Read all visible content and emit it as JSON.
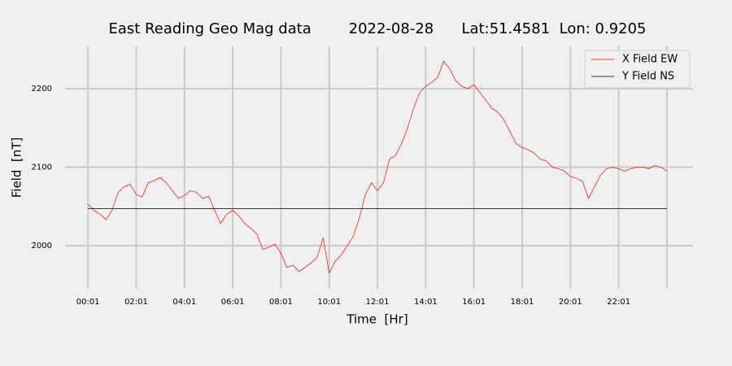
{
  "chart_data": {
    "type": "line",
    "title": "East Reading Geo Mag data        2022-08-28      Lat:51.4581  Lon: 0.9205",
    "x_label": "Time  [Hr]",
    "y_label": "Field  [nT]",
    "xlim": [
      -0.95,
      25.08
    ],
    "ylim": [
      1945,
      2254
    ],
    "xticks": [
      {
        "value": 0,
        "label": "00:01"
      },
      {
        "value": 2,
        "label": "02:01"
      },
      {
        "value": 4,
        "label": "04:01"
      },
      {
        "value": 6,
        "label": "06:01"
      },
      {
        "value": 8,
        "label": "08:01"
      },
      {
        "value": 10,
        "label": "10:01"
      },
      {
        "value": 12,
        "label": "12:01"
      },
      {
        "value": 14,
        "label": "14:01"
      },
      {
        "value": 16,
        "label": "16:01"
      },
      {
        "value": 18,
        "label": "18:01"
      },
      {
        "value": 20,
        "label": "20:01"
      },
      {
        "value": 22,
        "label": "22:01"
      },
      24
    ],
    "yticks": [
      2000,
      2100,
      2200
    ],
    "grid": true,
    "legend": "upper right",
    "series": [
      {
        "name": "X Field EW",
        "color": "#ff0000",
        "x": [
          0,
          0.25,
          0.5,
          0.75,
          1,
          1.25,
          1.5,
          1.75,
          2,
          2.25,
          2.5,
          2.75,
          3,
          3.25,
          3.5,
          3.75,
          4,
          4.25,
          4.5,
          4.75,
          5,
          5.25,
          5.5,
          5.75,
          6,
          6.25,
          6.5,
          6.75,
          7,
          7.25,
          7.5,
          7.75,
          8,
          8.25,
          8.5,
          8.75,
          9,
          9.25,
          9.5,
          9.75,
          10,
          10.25,
          10.5,
          10.75,
          11,
          11.25,
          11.5,
          11.75,
          12,
          12.25,
          12.5,
          12.75,
          13,
          13.25,
          13.5,
          13.75,
          14,
          14.25,
          14.5,
          14.75,
          15,
          15.25,
          15.5,
          15.75,
          16,
          16.25,
          16.5,
          16.75,
          17,
          17.25,
          17.5,
          17.75,
          18,
          18.25,
          18.5,
          18.75,
          19,
          19.25,
          19.5,
          19.75,
          20,
          20.25,
          20.5,
          20.75,
          21,
          21.25,
          21.5,
          21.75,
          22,
          22.25,
          22.5,
          22.75,
          23,
          23.25,
          23.5,
          23.75,
          24
        ],
        "values": [
          2053,
          2045,
          2040,
          2033,
          2045,
          2068,
          2075,
          2078,
          2065,
          2062,
          2080,
          2083,
          2087,
          2080,
          2070,
          2060,
          2064,
          2070,
          2068,
          2060,
          2063,
          2045,
          2028,
          2040,
          2045,
          2038,
          2028,
          2022,
          2015,
          1995,
          1998,
          2002,
          1990,
          1972,
          1975,
          1967,
          1972,
          1978,
          1985,
          2010,
          1965,
          1980,
          1988,
          2000,
          2012,
          2035,
          2065,
          2080,
          2070,
          2080,
          2110,
          2115,
          2130,
          2150,
          2175,
          2195,
          2203,
          2208,
          2215,
          2235,
          2225,
          2210,
          2203,
          2200,
          2205,
          2195,
          2185,
          2175,
          2170,
          2160,
          2145,
          2130,
          2125,
          2122,
          2118,
          2110,
          2108,
          2100,
          2098,
          2095,
          2088,
          2086,
          2082,
          2060,
          2075,
          2090,
          2098,
          2100,
          2098,
          2095,
          2098,
          2100,
          2100,
          2098,
          2102,
          2100,
          2095
        ]
      },
      {
        "name": "Y Field NS",
        "color": "#000000",
        "x": [
          0,
          24
        ],
        "values": [
          2047,
          2047
        ]
      }
    ]
  }
}
